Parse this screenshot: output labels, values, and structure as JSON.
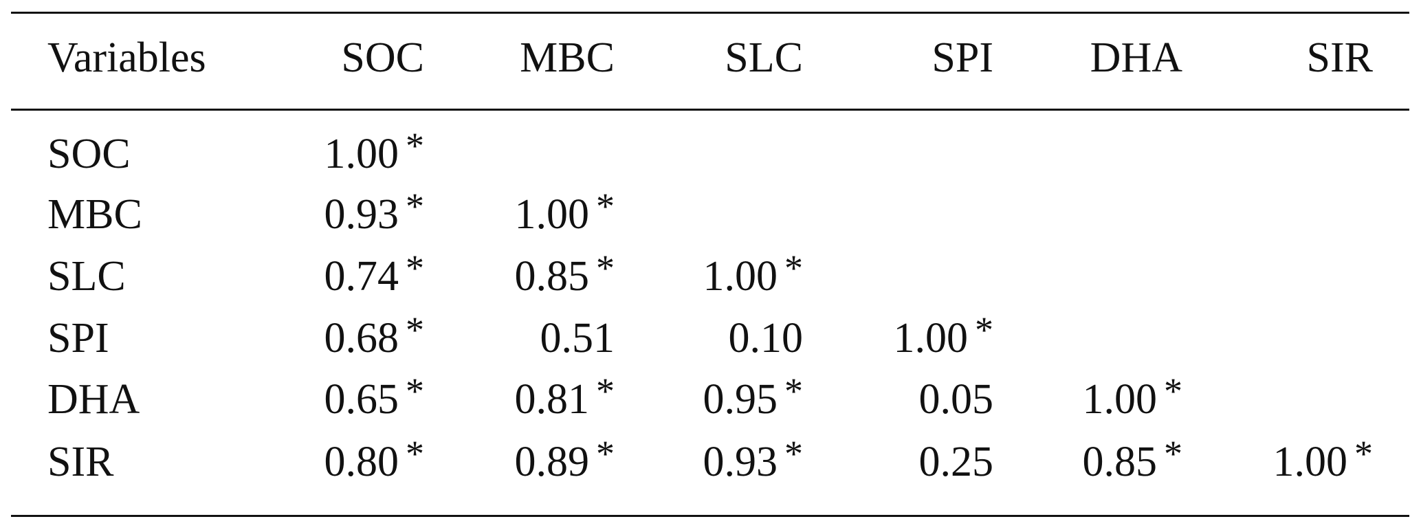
{
  "table": {
    "header": [
      "Variables",
      "SOC",
      "MBC",
      "SLC",
      "SPI",
      "DHA",
      "SIR"
    ],
    "rows": [
      {
        "label": "SOC",
        "cells": [
          {
            "value": "1.00",
            "sig": "*"
          }
        ]
      },
      {
        "label": "MBC",
        "cells": [
          {
            "value": "0.93",
            "sig": "*"
          },
          {
            "value": "1.00",
            "sig": "*"
          }
        ]
      },
      {
        "label": "SLC",
        "cells": [
          {
            "value": "0.74",
            "sig": "*"
          },
          {
            "value": "0.85",
            "sig": "*"
          },
          {
            "value": "1.00",
            "sig": "*"
          }
        ]
      },
      {
        "label": "SPI",
        "cells": [
          {
            "value": "0.68",
            "sig": "*"
          },
          {
            "value": "0.51"
          },
          {
            "value": "0.10"
          },
          {
            "value": "1.00",
            "sig": "*"
          }
        ]
      },
      {
        "label": "DHA",
        "cells": [
          {
            "value": "0.65",
            "sig": "*"
          },
          {
            "value": "0.81",
            "sig": "*"
          },
          {
            "value": "0.95",
            "sig": "*"
          },
          {
            "value": "0.05"
          },
          {
            "value": "1.00",
            "sig": "*"
          }
        ]
      },
      {
        "label": "SIR",
        "cells": [
          {
            "value": "0.80",
            "sig": "*"
          },
          {
            "value": "0.89",
            "sig": "*"
          },
          {
            "value": "0.93",
            "sig": "*"
          },
          {
            "value": "0.25"
          },
          {
            "value": "0.85",
            "sig": "*"
          },
          {
            "value": "1.00",
            "sig": "*"
          }
        ]
      }
    ]
  }
}
